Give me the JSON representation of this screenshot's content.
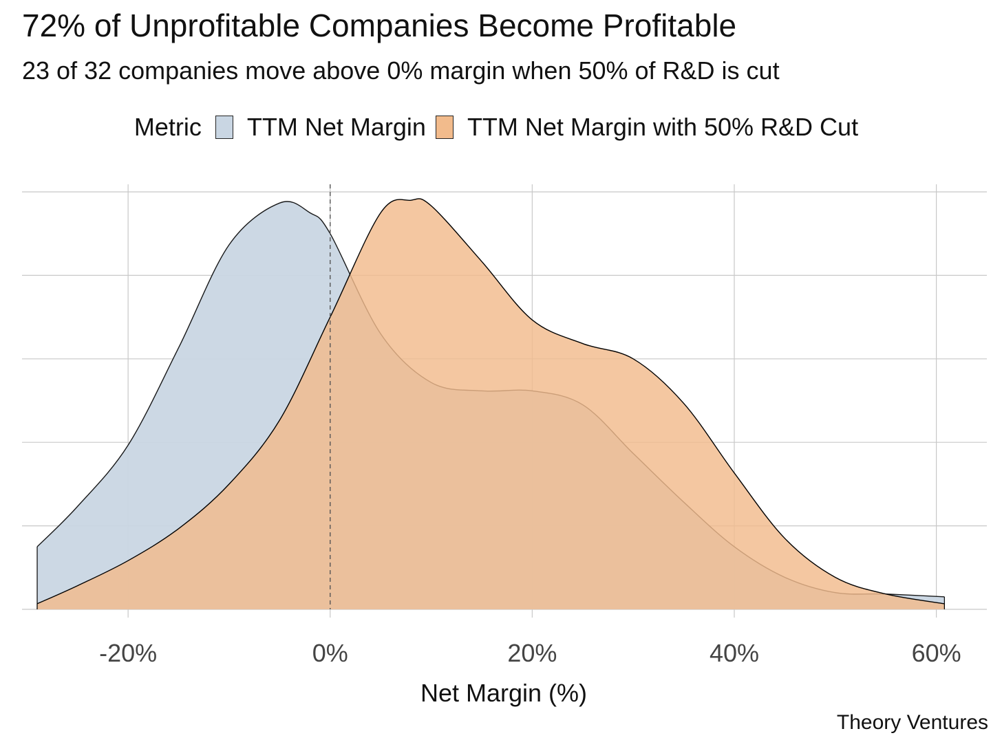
{
  "chart_data": {
    "type": "area",
    "subtype": "density",
    "title": "72% of Unprofitable Companies Become Profitable",
    "subtitle": "23 of 32 companies move above 0% margin when 50% of R&D is cut",
    "xlabel": "Net Margin (%)",
    "ylabel": "",
    "xlim": [
      -30.5,
      65
    ],
    "ylim": [
      0,
      0.0305
    ],
    "x_ticks": [
      -20,
      0,
      20,
      40,
      60
    ],
    "x_tick_labels": [
      "-20%",
      "0%",
      "20%",
      "40%",
      "60%"
    ],
    "y_grid_values": [
      0,
      0.006,
      0.012,
      0.018,
      0.024,
      0.03
    ],
    "grid": true,
    "reference_line": {
      "x": 0,
      "style": "dashed"
    },
    "legend": {
      "title": "Metric",
      "position": "top"
    },
    "caption": "Theory Ventures",
    "series": [
      {
        "name": "TTM Net Margin",
        "color": "#c9d6e3",
        "x": [
          -29,
          -25,
          -20,
          -15,
          -10,
          -5,
          -2,
          0,
          5,
          10,
          15,
          20,
          25,
          30,
          35,
          40,
          45,
          50,
          55,
          60.8
        ],
        "y": [
          0.0045,
          0.0074,
          0.0118,
          0.0188,
          0.0262,
          0.0292,
          0.0285,
          0.027,
          0.0198,
          0.0163,
          0.0157,
          0.0157,
          0.0147,
          0.0112,
          0.0077,
          0.0045,
          0.0023,
          0.0012,
          0.0011,
          0.0009
        ]
      },
      {
        "name": "TTM Net Margin with 50% R&D Cut",
        "color": "#f2bb8c",
        "x": [
          -29,
          -25,
          -20,
          -15,
          -10,
          -5,
          0,
          5,
          8,
          10,
          15,
          20,
          25,
          30,
          35,
          40,
          45,
          50,
          55,
          60.8
        ],
        "y": [
          0.0004,
          0.0017,
          0.0035,
          0.0058,
          0.009,
          0.0136,
          0.021,
          0.0285,
          0.0294,
          0.029,
          0.025,
          0.0208,
          0.0191,
          0.018,
          0.0148,
          0.0098,
          0.0051,
          0.0023,
          0.0011,
          0.0004
        ]
      }
    ]
  }
}
